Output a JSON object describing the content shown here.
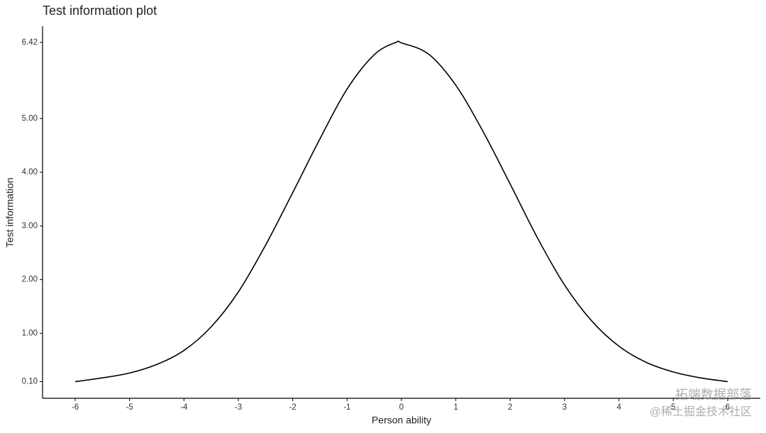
{
  "chart_data": {
    "type": "line",
    "title": "Test information plot",
    "x_label": "Person ability",
    "y_label": "Test information",
    "x": [
      -6,
      -5.5,
      -5,
      -4.5,
      -4,
      -3.5,
      -3,
      -2.5,
      -2,
      -1.5,
      -1,
      -0.5,
      -0.1,
      0,
      0.5,
      1,
      1.5,
      2,
      2.5,
      3,
      3.5,
      4,
      4.5,
      5,
      5.5,
      6
    ],
    "series": [
      {
        "name": "Test information",
        "color": "#000000",
        "values": [
          0.1,
          0.17,
          0.26,
          0.42,
          0.68,
          1.12,
          1.77,
          2.64,
          3.62,
          4.62,
          5.55,
          6.19,
          6.42,
          6.41,
          6.2,
          5.62,
          4.76,
          3.78,
          2.78,
          1.9,
          1.23,
          0.76,
          0.46,
          0.28,
          0.17,
          0.1
        ]
      }
    ],
    "xlim": [
      -6.6,
      6.6
    ],
    "ylim": [
      -0.21,
      6.72
    ],
    "xticks": [
      -6,
      -5,
      -4,
      -3,
      -2,
      -1,
      0,
      1,
      2,
      3,
      4,
      5,
      6
    ],
    "yticks": [
      {
        "value": 0.1,
        "label": "0.10"
      },
      {
        "value": 1,
        "label": "1.00"
      },
      {
        "value": 2,
        "label": "2.00"
      },
      {
        "value": 3,
        "label": "3.00"
      },
      {
        "value": 4,
        "label": "4.00"
      },
      {
        "value": 5,
        "label": "5.00"
      },
      {
        "value": 6.42,
        "label": "6.42"
      }
    ],
    "grid": false,
    "watermark": [
      "拓端数据部落",
      "@稀土掘金技术社区"
    ]
  }
}
